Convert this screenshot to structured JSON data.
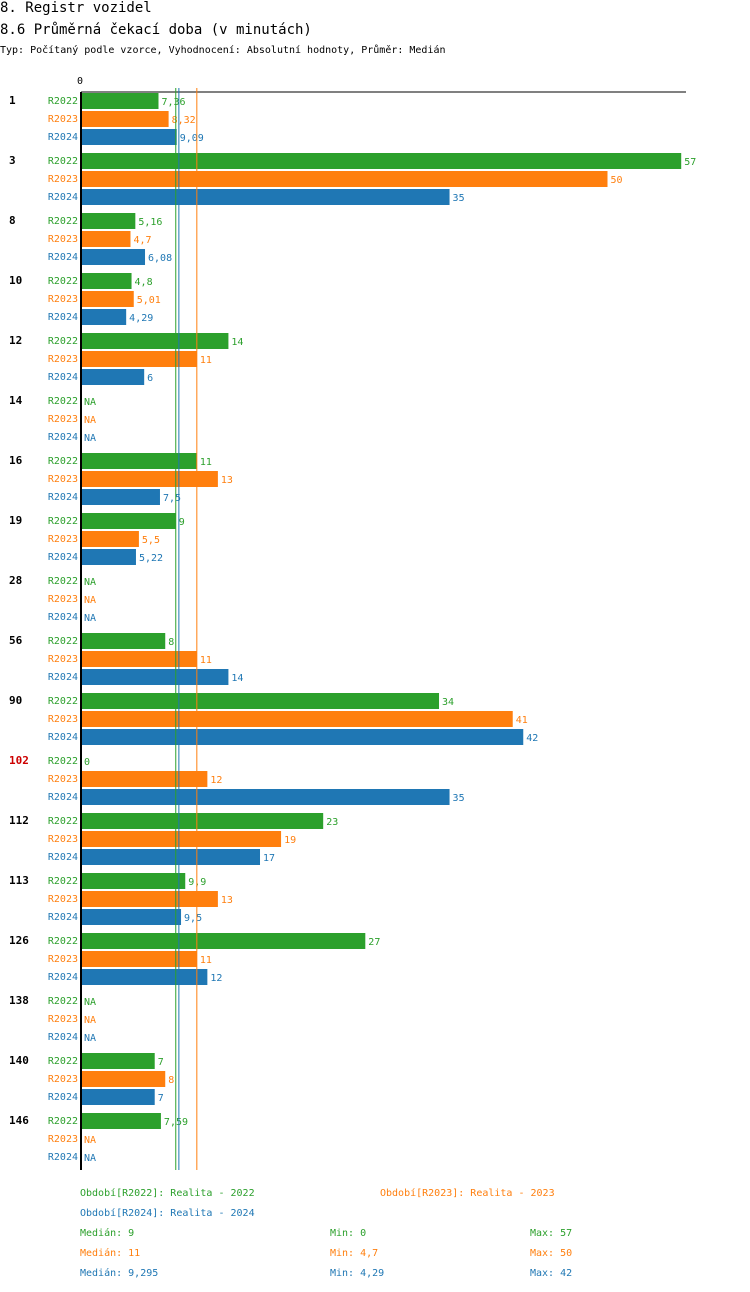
{
  "page": {
    "title": "8. Registr vozidel",
    "subtitle": "8.6 Průměrná čekací doba (v minutách)",
    "meta": "Typ: Počítaný podle vzorce, Vyhodnocení: Absolutní hodnoty, Průměr: Medián"
  },
  "colors": {
    "R2022": "#2ca02c",
    "R2023": "#ff7f0e",
    "R2024": "#1f77b4",
    "highlight": "#cc0000"
  },
  "chart_data": {
    "type": "bar",
    "orientation": "horizontal",
    "x_axis_label": "0",
    "xlim": [
      0,
      57
    ],
    "series_names": [
      "R2022",
      "R2023",
      "R2024"
    ],
    "groups": [
      {
        "label": "1",
        "highlight": false,
        "values": [
          7.36,
          8.32,
          9.09
        ],
        "labels": [
          "7,36",
          "8,32",
          "9,09"
        ]
      },
      {
        "label": "3",
        "highlight": false,
        "values": [
          57,
          50,
          35
        ],
        "labels": [
          "57",
          "50",
          "35"
        ]
      },
      {
        "label": "8",
        "highlight": false,
        "values": [
          5.16,
          4.7,
          6.08
        ],
        "labels": [
          "5,16",
          "4,7",
          "6,08"
        ]
      },
      {
        "label": "10",
        "highlight": false,
        "values": [
          4.8,
          5.01,
          4.29
        ],
        "labels": [
          "4,8",
          "5,01",
          "4,29"
        ]
      },
      {
        "label": "12",
        "highlight": false,
        "values": [
          14,
          11,
          6
        ],
        "labels": [
          "14",
          "11",
          "6"
        ]
      },
      {
        "label": "14",
        "highlight": false,
        "values": [
          null,
          null,
          null
        ],
        "labels": [
          "NA",
          "NA",
          "NA"
        ]
      },
      {
        "label": "16",
        "highlight": false,
        "values": [
          11,
          13,
          7.5
        ],
        "labels": [
          "11",
          "13",
          "7,5"
        ]
      },
      {
        "label": "19",
        "highlight": false,
        "values": [
          9,
          5.5,
          5.22
        ],
        "labels": [
          "9",
          "5,5",
          "5,22"
        ]
      },
      {
        "label": "28",
        "highlight": false,
        "values": [
          null,
          null,
          null
        ],
        "labels": [
          "NA",
          "NA",
          "NA"
        ]
      },
      {
        "label": "56",
        "highlight": false,
        "values": [
          8,
          11,
          14
        ],
        "labels": [
          "8",
          "11",
          "14"
        ]
      },
      {
        "label": "90",
        "highlight": false,
        "values": [
          34,
          41,
          42
        ],
        "labels": [
          "34",
          "41",
          "42"
        ]
      },
      {
        "label": "102",
        "highlight": true,
        "values": [
          0,
          12,
          35
        ],
        "labels": [
          "0",
          "12",
          "35"
        ]
      },
      {
        "label": "112",
        "highlight": false,
        "values": [
          23,
          19,
          17
        ],
        "labels": [
          "23",
          "19",
          "17"
        ]
      },
      {
        "label": "113",
        "highlight": false,
        "values": [
          9.9,
          13,
          9.5
        ],
        "labels": [
          "9,9",
          "13",
          "9,5"
        ]
      },
      {
        "label": "126",
        "highlight": false,
        "values": [
          27,
          11,
          12
        ],
        "labels": [
          "27",
          "11",
          "12"
        ]
      },
      {
        "label": "138",
        "highlight": false,
        "values": [
          null,
          null,
          null
        ],
        "labels": [
          "NA",
          "NA",
          "NA"
        ]
      },
      {
        "label": "140",
        "highlight": false,
        "values": [
          7,
          8,
          7
        ],
        "labels": [
          "7",
          "8",
          "7"
        ]
      },
      {
        "label": "146",
        "highlight": false,
        "values": [
          7.59,
          null,
          null
        ],
        "labels": [
          "7,59",
          "NA",
          "NA"
        ]
      }
    ],
    "reference_lines": [
      {
        "series": "R2022",
        "value": 9
      },
      {
        "series": "R2023",
        "value": 11
      },
      {
        "series": "R2024",
        "value": 9.295
      }
    ]
  },
  "legend": {
    "period_r2022": "Období[R2022]: Realita - 2022",
    "period_r2023": "Období[R2023]: Realita - 2023",
    "period_r2024": "Období[R2024]: Realita - 2024",
    "stats": [
      {
        "median": "Medián: 9",
        "min": "Min: 0",
        "max": "Max: 57"
      },
      {
        "median": "Medián: 11",
        "min": "Min: 4,7",
        "max": "Max: 50"
      },
      {
        "median": "Medián: 9,295",
        "min": "Min: 4,29",
        "max": "Max: 42"
      }
    ]
  }
}
